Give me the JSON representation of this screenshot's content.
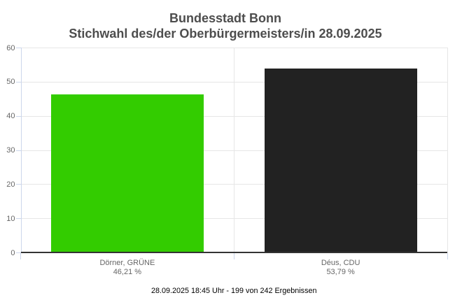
{
  "title": {
    "line1": "Bundesstadt Bonn",
    "line2": "Stichwahl des/der Oberbürgermeisters/in 28.09.2025"
  },
  "footer": "28.09.2025 18:45 Uhr - 199 von 242 Ergebnissen",
  "chart_data": {
    "type": "bar",
    "title": "Bundesstadt Bonn — Stichwahl des/der Oberbürgermeisters/in 28.09.2025",
    "categories": [
      "Dörner, GRÜNE",
      "Déus, CDU"
    ],
    "category_sublabels": [
      "46,21 %",
      "53,79 %"
    ],
    "values": [
      46.21,
      53.79
    ],
    "bar_colors": [
      "#33cc00",
      "#222222"
    ],
    "xlabel": "28.09.2025 18:45 Uhr - 199 von 242 Ergebnissen",
    "ylabel": "",
    "ylim": [
      0,
      60
    ],
    "yticks": [
      0,
      10,
      20,
      30,
      40,
      50,
      60
    ],
    "grid": true,
    "legend": false
  },
  "colors": {
    "bar_green": "#33cc00",
    "bar_dark": "#222222",
    "title_text": "#4d4d4d",
    "axis_label_text": "#666666",
    "footer_text": "#000000",
    "gridline": "#e6e6e6",
    "axis_line": "#ccd6eb",
    "x_axis_line": "#333333"
  }
}
